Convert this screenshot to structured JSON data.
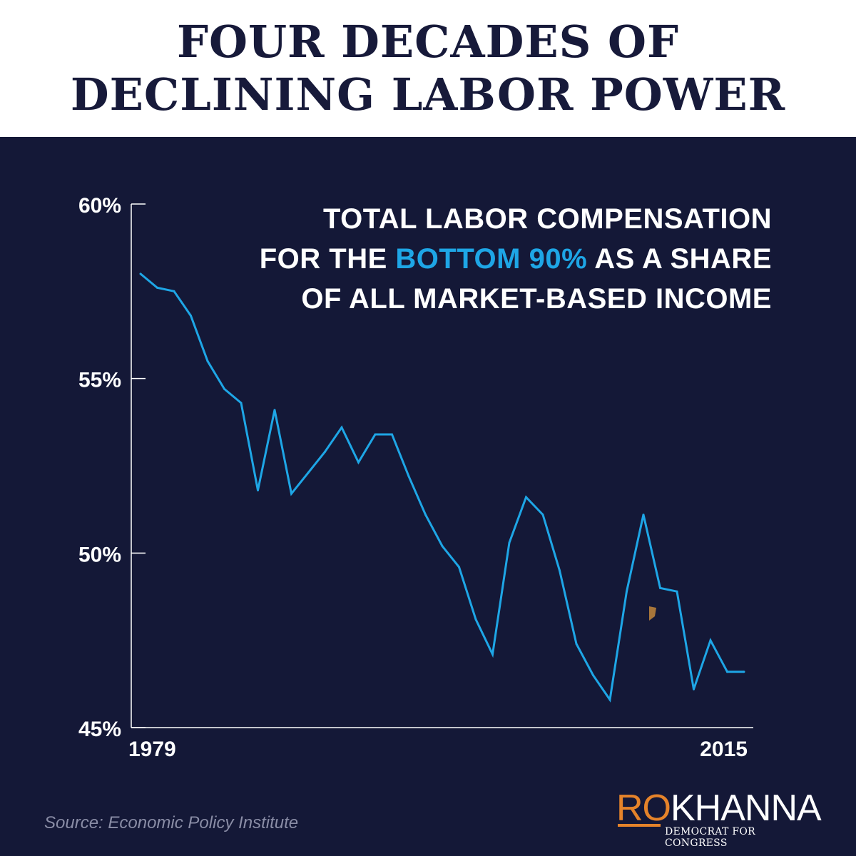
{
  "header": {
    "title_line1": "FOUR DECADES OF",
    "title_line2": "DECLINING LABOR POWER"
  },
  "subtitle": {
    "line1": "TOTAL LABOR COMPENSATION",
    "line2_pre": "FOR THE ",
    "line2_highlight": "BOTTOM 90%",
    "line2_post": " AS A SHARE",
    "line3": "OF ALL MARKET-BASED INCOME"
  },
  "source": "Source: Economic Policy Institute",
  "brand": {
    "first": "RO",
    "last": "KHANNA",
    "tagline": "DEMOCRAT FOR CONGRESS"
  },
  "colors": {
    "background": "#141837",
    "title": "#171a3a",
    "line": "#1ea6e6",
    "highlight": "#1ea6e6",
    "brand_accent": "#e5832a"
  },
  "chart_data": {
    "type": "line",
    "x": [
      1979,
      1980,
      1981,
      1982,
      1983,
      1984,
      1985,
      1986,
      1987,
      1988,
      1989,
      1990,
      1991,
      1992,
      1993,
      1994,
      1995,
      1996,
      1997,
      1998,
      1999,
      2000,
      2001,
      2002,
      2003,
      2004,
      2005,
      2006,
      2007,
      2008,
      2009,
      2010,
      2011,
      2012,
      2013,
      2014,
      2015
    ],
    "series": [
      {
        "values": [
          58.0,
          57.6,
          57.5,
          56.8,
          55.5,
          54.7,
          54.3,
          51.8,
          54.1,
          51.7,
          52.3,
          52.9,
          53.6,
          52.6,
          53.4,
          53.4,
          52.2,
          51.1,
          50.2,
          49.6,
          48.1,
          47.1,
          50.3,
          51.6,
          51.1,
          49.5,
          47.4,
          46.5,
          45.8,
          48.9,
          51.1,
          49.0,
          48.9,
          46.1,
          47.5,
          46.6,
          46.6
        ]
      }
    ],
    "xticks": [
      "1979",
      "2015"
    ],
    "yticks": [
      "45%",
      "50%",
      "55%",
      "60%"
    ],
    "ylim": [
      45,
      60
    ],
    "xlim": [
      1979,
      2015
    ],
    "grid": false,
    "title": "TOTAL LABOR COMPENSATION FOR THE BOTTOM 90% AS A SHARE OF ALL MARKET-BASED INCOME",
    "xlabel": "",
    "ylabel": ""
  }
}
